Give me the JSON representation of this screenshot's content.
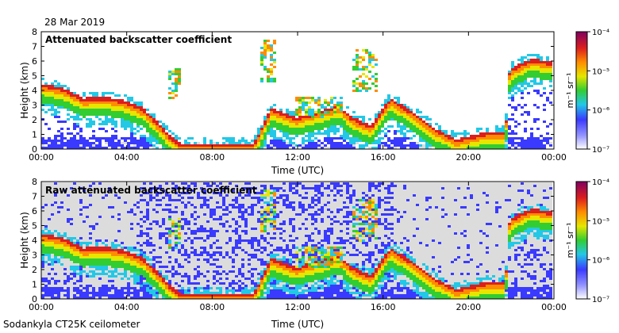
{
  "date": "28 Mar 2019",
  "footer": "Sodankyla CT25K ceilometer",
  "colors": {
    "noise": "#dcdcdc",
    "blue": "#3a3aff",
    "cyan": "#23c8e6",
    "green": "#32cd32",
    "yellow": "#e6e600",
    "orange": "#ff8c00",
    "red": "#dc1e1e",
    "darkred": "#8b0000"
  },
  "chart_data": [
    {
      "type": "heatmap",
      "title": "Attenuated backscatter coefficient",
      "xlabel": "Time (UTC)",
      "ylabel": "Height (km)",
      "x_ticks": [
        "00:00",
        "04:00",
        "08:00",
        "12:00",
        "16:00",
        "20:00",
        "00:00"
      ],
      "xlim": [
        0,
        24
      ],
      "y_ticks": [
        "0",
        "1",
        "2",
        "3",
        "4",
        "5",
        "6",
        "7",
        "8"
      ],
      "ylim": [
        0,
        8
      ],
      "colorbar": {
        "label": "m⁻¹ sr⁻¹",
        "ticks": [
          "10⁻⁷",
          "10⁻⁶",
          "10⁻⁵",
          "10⁻⁴"
        ],
        "scale": "log"
      },
      "layer_top_km": [
        [
          0,
          4.5
        ],
        [
          1,
          4.2
        ],
        [
          2,
          3.5
        ],
        [
          3,
          3.6
        ],
        [
          4,
          3.3
        ],
        [
          4.8,
          2.8
        ],
        [
          5.5,
          1.8
        ],
        [
          6,
          1.0
        ],
        [
          6.5,
          0.4
        ],
        [
          8,
          0.35
        ],
        [
          10,
          0.4
        ],
        [
          10.8,
          2.8
        ],
        [
          12,
          2.2
        ],
        [
          13,
          2.6
        ],
        [
          14,
          3.0
        ],
        [
          14.6,
          2.2
        ],
        [
          15.5,
          1.6
        ],
        [
          16.4,
          3.5
        ],
        [
          17.5,
          2.5
        ],
        [
          18.5,
          1.4
        ],
        [
          19.5,
          0.7
        ],
        [
          21,
          1.2
        ],
        [
          21.8,
          1.2
        ],
        [
          22,
          5.5
        ],
        [
          23,
          6.2
        ],
        [
          24,
          6.0
        ]
      ]
    },
    {
      "type": "heatmap",
      "title": "Raw attenuated backscatter coefficient",
      "xlabel": "Time (UTC)",
      "ylabel": "Height (km)",
      "x_ticks": [
        "00:00",
        "04:00",
        "08:00",
        "12:00",
        "16:00",
        "20:00",
        "00:00"
      ],
      "xlim": [
        0,
        24
      ],
      "y_ticks": [
        "0",
        "1",
        "2",
        "3",
        "4",
        "5",
        "6",
        "7",
        "8"
      ],
      "ylim": [
        0,
        8
      ],
      "colorbar": {
        "label": "m⁻¹ sr⁻¹",
        "ticks": [
          "10⁻⁷",
          "10⁻⁶",
          "10⁻⁵",
          "10⁻⁴"
        ],
        "scale": "log"
      }
    }
  ]
}
